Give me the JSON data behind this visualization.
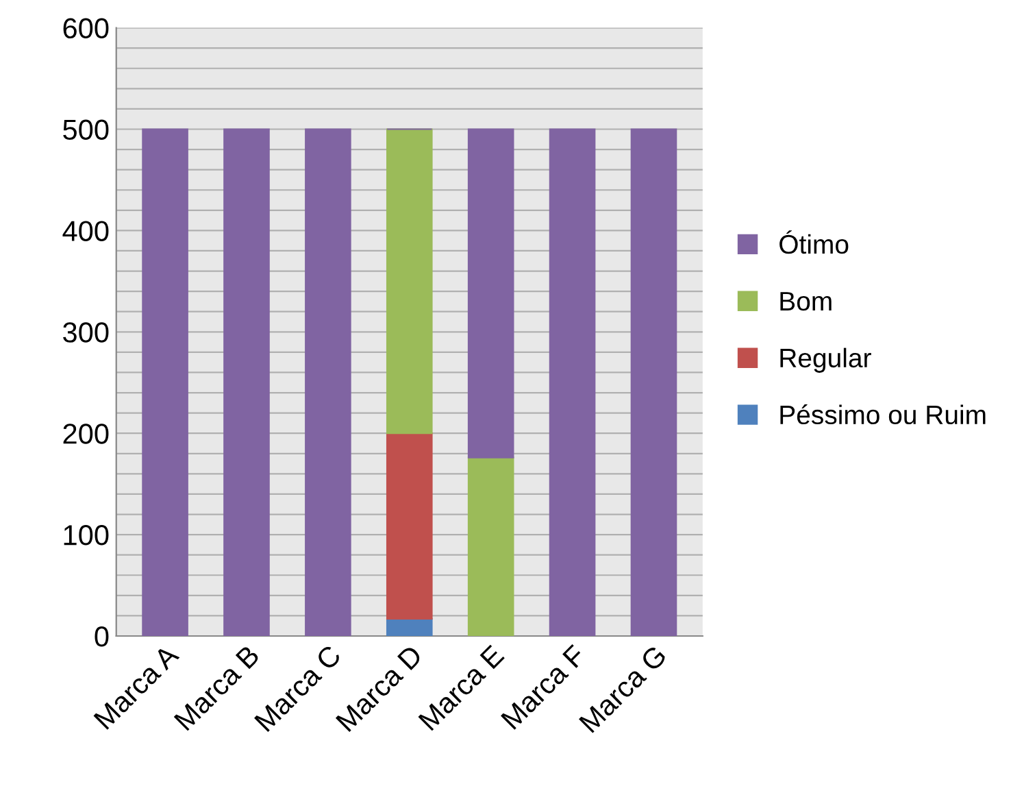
{
  "chart_data": {
    "type": "bar",
    "stacked": true,
    "categories": [
      "Marca A",
      "Marca B",
      "Marca C",
      "Marca D",
      "Marca E",
      "Marca F",
      "Marca G"
    ],
    "series": [
      {
        "name": "Péssimo ou Ruim",
        "color": "#4f81bd",
        "values": [
          0,
          0,
          0,
          17,
          0,
          0,
          0
        ]
      },
      {
        "name": "Regular",
        "color": "#c0504d",
        "values": [
          0,
          0,
          0,
          183,
          0,
          0,
          0
        ]
      },
      {
        "name": "Bom",
        "color": "#9bbb59",
        "values": [
          0,
          0,
          0,
          300,
          176,
          0,
          0
        ]
      },
      {
        "name": "Ótimo",
        "color": "#8064a2",
        "values": [
          500,
          500,
          500,
          0,
          324,
          500,
          500
        ]
      }
    ],
    "ylim": [
      0,
      600
    ],
    "yticks": [
      0,
      {
        "value": 20,
        "label": null
      },
      {
        "value": 40,
        "label": null
      },
      {
        "value": 60,
        "label": null
      },
      {
        "value": 80,
        "label": null
      },
      100,
      {
        "value": 120,
        "label": null
      },
      {
        "value": 140,
        "label": null
      },
      {
        "value": 160,
        "label": null
      },
      {
        "value": 180,
        "label": null
      },
      200,
      {
        "value": 220,
        "label": null
      },
      {
        "value": 240,
        "label": null
      },
      {
        "value": 260,
        "label": null
      },
      {
        "value": 280,
        "label": null
      },
      300,
      {
        "value": 320,
        "label": null
      },
      {
        "value": 340,
        "label": null
      },
      {
        "value": 360,
        "label": null
      },
      {
        "value": 380,
        "label": null
      },
      400,
      {
        "value": 420,
        "label": null
      },
      {
        "value": 440,
        "label": null
      },
      {
        "value": 460,
        "label": null
      },
      {
        "value": 480,
        "label": null
      },
      500,
      {
        "value": 520,
        "label": null
      },
      {
        "value": 540,
        "label": null
      },
      {
        "value": 560,
        "label": null
      },
      {
        "value": 580,
        "label": null
      },
      600
    ],
    "grid": "y",
    "legend": "right"
  }
}
